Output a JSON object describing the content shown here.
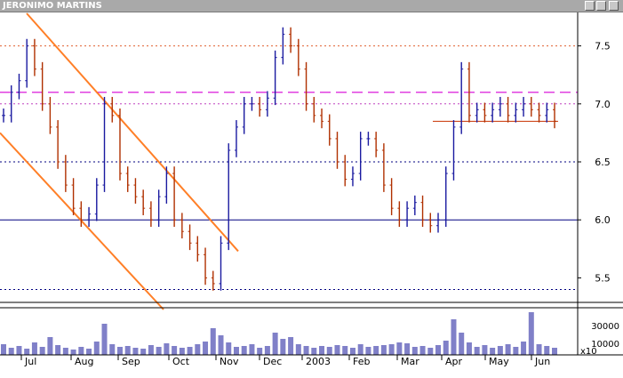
{
  "window": {
    "title": "JERONIMO MARTINS"
  },
  "chart_data": {
    "type": "line",
    "title": "JERONIMO MARTINS",
    "price_axis": {
      "ylim": [
        5.25,
        7.75
      ],
      "ticks": [
        "7.5",
        "7.0",
        "6.5",
        "6.0",
        "5.5"
      ],
      "values": [
        7.5,
        7.0,
        6.5,
        6.0,
        5.5
      ]
    },
    "volume_axis": {
      "ticks": [
        "30000",
        "10000"
      ],
      "values": [
        30000,
        10000
      ],
      "multiplier_label": "x10"
    },
    "x_labels": [
      "Jul",
      "Aug",
      "Sep",
      "Oct",
      "Nov",
      "Dec",
      "2003",
      "Feb",
      "Mar",
      "Apr",
      "May",
      "Jun"
    ],
    "series": [
      {
        "values": [
          6.9,
          7.1,
          7.2,
          7.5,
          7.3,
          7.0,
          6.8,
          6.5,
          6.3,
          6.1,
          6.0,
          6.05,
          6.3,
          7.0,
          6.9,
          6.4,
          6.3,
          6.2,
          6.1,
          6.0,
          6.2,
          6.4,
          6.0,
          5.9,
          5.8,
          5.7,
          5.5,
          5.45,
          5.8,
          6.6,
          6.8,
          7.0,
          7.0,
          6.95,
          7.05,
          7.4,
          7.6,
          7.5,
          7.3,
          7.0,
          6.9,
          6.85,
          6.7,
          6.5,
          6.35,
          6.4,
          6.7,
          6.7,
          6.6,
          6.3,
          6.1,
          6.0,
          6.1,
          6.15,
          6.0,
          5.95,
          6.0,
          6.4,
          6.8,
          7.3,
          6.9,
          6.95,
          6.9,
          6.95,
          7.0,
          6.9,
          6.95,
          7.0,
          6.95,
          6.9,
          6.95,
          6.85
        ]
      }
    ],
    "reference_lines": [
      {
        "value": 7.5,
        "style": "dotted",
        "color": "#e06030"
      },
      {
        "value": 7.1,
        "style": "dashed",
        "color": "#e040e0"
      },
      {
        "value": 7.0,
        "style": "dotted",
        "color": "#c040c0"
      },
      {
        "value": 6.5,
        "style": "dotted",
        "color": "#000080"
      },
      {
        "value": 6.0,
        "style": "solid",
        "color": "#000080"
      },
      {
        "value": 5.4,
        "style": "dotted",
        "color": "#000080"
      },
      {
        "value": 6.85,
        "style": "solid",
        "color": "#c83200"
      }
    ],
    "trend_channel": {
      "color": "#ff7f27"
    },
    "colors": {
      "up": "#1a1aa0",
      "down": "#b03000",
      "volume": "#8080c8",
      "background": "#ffffff"
    },
    "volume": [
      12,
      8,
      10,
      7,
      14,
      9,
      20,
      11,
      8,
      6,
      9,
      7,
      15,
      35,
      12,
      9,
      10,
      8,
      7,
      11,
      9,
      13,
      10,
      8,
      9,
      12,
      15,
      30,
      22,
      14,
      9,
      10,
      12,
      8,
      10,
      25,
      18,
      20,
      12,
      10,
      8,
      10,
      9,
      11,
      10,
      8,
      12,
      9,
      10,
      11,
      12,
      14,
      13,
      9,
      10,
      8,
      11,
      16,
      40,
      25,
      14,
      9,
      11,
      8,
      10,
      12,
      9,
      15,
      48,
      12,
      10,
      8
    ],
    "grid": false,
    "legend": "none"
  }
}
